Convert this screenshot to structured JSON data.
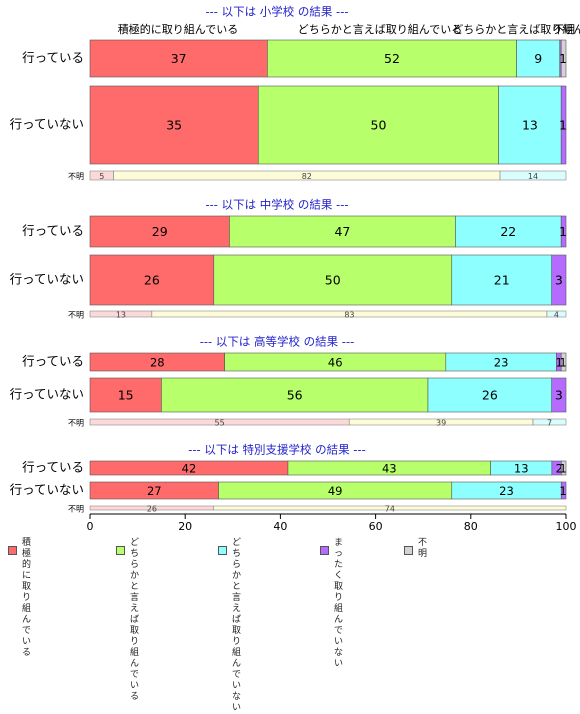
{
  "category_labels": [
    "積極的に取り組んでいる",
    "どちらかと言えば取り組んでいる",
    "どちらかと言えば取り組んでいない",
    "まったく取り組んでいない",
    "不明"
  ],
  "top_header_labels": [
    {
      "text": "積極的に取り組んでいる"
    },
    {
      "text": "どちらかと言えば取り組んでいる"
    },
    {
      "text": "どちらかと言えば取り組んでいない"
    },
    {
      "text": "不明"
    }
  ],
  "legend": {
    "items": [
      {
        "label": "積極的に\n取り組んでいる",
        "color": "#ff6b6b"
      },
      {
        "label": "どちらかと言えば\n取り組んでいる",
        "color": "#b7ff6b"
      },
      {
        "label": "どちらかと言えば\n取り組んでいない",
        "color": "#8effff"
      },
      {
        "label": "まったく\n取り組んでいない",
        "color": "#b66bff"
      },
      {
        "label": "不明",
        "color": "#d3d3d3"
      }
    ]
  },
  "chart_data": {
    "type": "bar",
    "orientation": "horizontal-stacked",
    "xlim": [
      0,
      100
    ],
    "xticks": [
      0,
      20,
      40,
      60,
      80,
      100
    ],
    "colors": [
      "#ff6b6b",
      "#b7ff6b",
      "#8effff",
      "#b66bff",
      "#d3d3d3"
    ],
    "unknown_colors": [
      "#fcd9d9",
      "#fcfcd9",
      "#d9fcfc"
    ],
    "groups": [
      {
        "title": "--- 以下は 小学校 の結果 ---",
        "rows": [
          {
            "label": "行っている",
            "values": [
              37,
              52,
              9,
              0.3,
              1
            ],
            "value_labels": [
              "37",
              "52",
              "9",
              "",
              "1"
            ]
          },
          {
            "label": "行っていない",
            "values": [
              35,
              50,
              13,
              1,
              0
            ],
            "value_labels": [
              "35",
              "50",
              "13",
              "1",
              ""
            ]
          }
        ],
        "unknown": {
          "label": "不明",
          "values": [
            5,
            82,
            14
          ],
          "value_labels": [
            "5",
            "82",
            "14"
          ]
        }
      },
      {
        "title": "--- 以下は 中学校 の結果 ---",
        "rows": [
          {
            "label": "行っている",
            "values": [
              29,
              47,
              22,
              1,
              0
            ],
            "value_labels": [
              "29",
              "47",
              "22",
              "1",
              ""
            ]
          },
          {
            "label": "行っていない",
            "values": [
              26,
              50,
              21,
              3,
              0
            ],
            "value_labels": [
              "26",
              "50",
              "21",
              "3",
              ""
            ]
          }
        ],
        "unknown": {
          "label": "不明",
          "values": [
            13,
            83,
            4
          ],
          "value_labels": [
            "13",
            "83",
            "4"
          ]
        }
      },
      {
        "title": "--- 以下は 高等学校 の結果 ---",
        "rows": [
          {
            "label": "行っている",
            "values": [
              28,
              46,
              23,
              1,
              1
            ],
            "value_labels": [
              "28",
              "46",
              "23",
              "1",
              "1"
            ]
          },
          {
            "label": "行っていない",
            "values": [
              15,
              56,
              26,
              3,
              0
            ],
            "value_labels": [
              "15",
              "56",
              "26",
              "3",
              ""
            ]
          }
        ],
        "unknown": {
          "label": "不明",
          "values": [
            55,
            39,
            7
          ],
          "value_labels": [
            "55",
            "39",
            "7"
          ]
        }
      },
      {
        "title": "--- 以下は 特別支援学校 の結果 ---",
        "rows": [
          {
            "label": "行っている",
            "values": [
              42,
              43,
              13,
              2,
              1
            ],
            "value_labels": [
              "42",
              "43",
              "13",
              "2",
              "1"
            ]
          },
          {
            "label": "行っていない",
            "values": [
              27,
              49,
              23,
              1,
              0
            ],
            "value_labels": [
              "27",
              "49",
              "23",
              "1",
              ""
            ]
          }
        ],
        "unknown": {
          "label": "不明",
          "values": [
            26,
            74
          ],
          "value_labels": [
            "26",
            "74"
          ]
        }
      }
    ]
  }
}
